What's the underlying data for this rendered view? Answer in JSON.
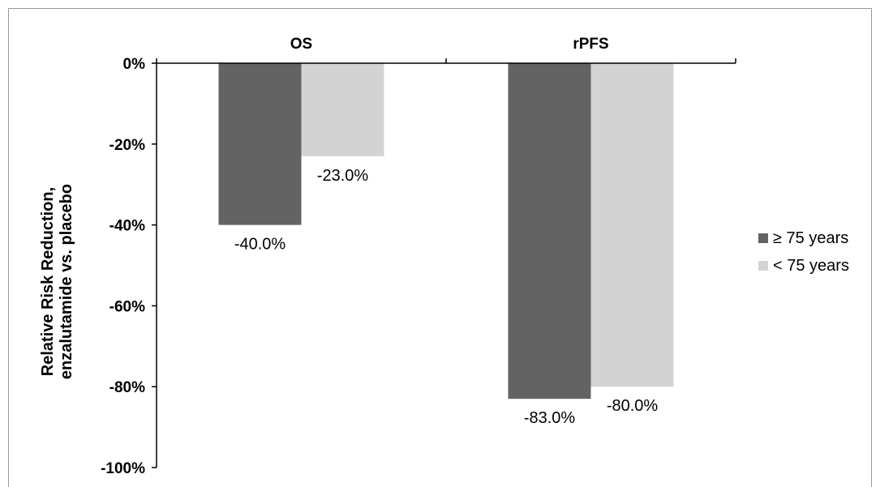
{
  "chart_data": {
    "type": "bar",
    "categories": [
      "OS",
      "rPFS"
    ],
    "series": [
      {
        "name": "≥ 75 years",
        "values": [
          -40.0,
          -83.0
        ],
        "labels": [
          "-40.0%",
          "-83.0%"
        ],
        "color": "#636363"
      },
      {
        "name": "< 75 years",
        "values": [
          -23.0,
          -80.0
        ],
        "labels": [
          "-23.0%",
          "-80.0%"
        ],
        "color": "#d3d3d3"
      }
    ],
    "ylim": [
      -100,
      0
    ],
    "yticks": [
      0,
      -20,
      -40,
      -60,
      -80,
      -100
    ],
    "ytick_labels": [
      "0%",
      "-20%",
      "-40%",
      "-60%",
      "-80%",
      "-100%"
    ],
    "ylabel_lines": [
      "Relative Risk Reduction,",
      "enzalutamide vs. placebo"
    ],
    "xlabel": "",
    "title": "",
    "grid": false,
    "legend_position": "right"
  }
}
